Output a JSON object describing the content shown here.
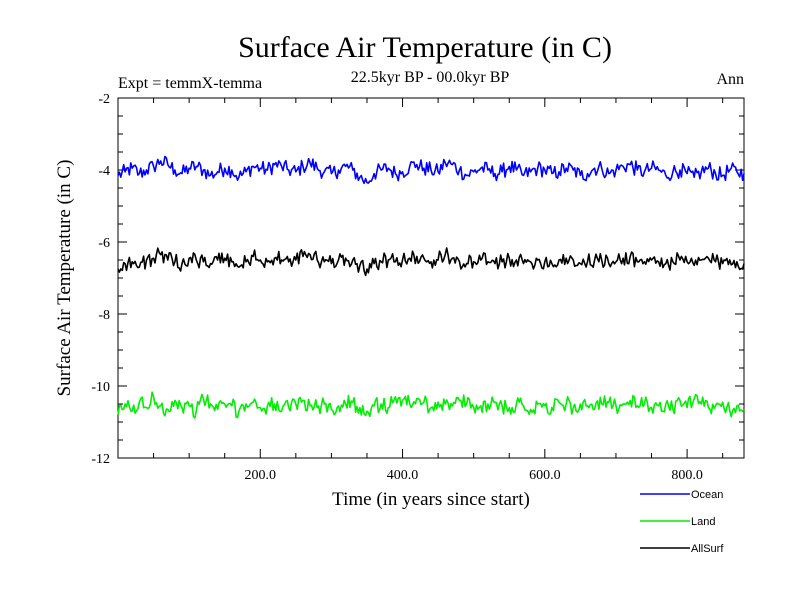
{
  "chart_data": {
    "type": "line",
    "title": "Surface Air Temperature (in C)",
    "subtitle": "22.5kyr BP - 00.0kyr BP",
    "annotation_left": "Expt = temmX-temma",
    "annotation_right": "Ann",
    "xlabel": "Time (in years since start)",
    "ylabel": "Surface Air Temperature (in C)",
    "xlim": [
      0,
      880
    ],
    "ylim": [
      -12,
      -2
    ],
    "x_tick_values": [
      200,
      400,
      600,
      800
    ],
    "x_tick_labels": [
      "200.0",
      "400.0",
      "600.0",
      "800.0"
    ],
    "y_tick_values": [
      -2,
      -4,
      -6,
      -8,
      -10,
      -12
    ],
    "y_tick_labels": [
      "-2",
      "-4",
      "-6",
      "-8",
      "-10",
      "-12"
    ],
    "grid": false,
    "legend_placement": "bottom-right",
    "series": [
      {
        "name": "Ocean",
        "color": "#0000ff",
        "x_start": 0,
        "x_end": 880,
        "x_step": 10,
        "values": [
          -4.15,
          -4.05,
          -3.95,
          -4.1,
          -4.0,
          -3.9,
          -3.75,
          -3.85,
          -4.0,
          -4.1,
          -3.95,
          -3.9,
          -4.0,
          -4.15,
          -4.05,
          -3.95,
          -4.0,
          -4.2,
          -4.05,
          -3.9,
          -3.95,
          -4.0,
          -3.85,
          -3.9,
          -4.0,
          -4.05,
          -3.9,
          -3.8,
          -3.95,
          -4.05,
          -4.1,
          -4.0,
          -3.9,
          -4.0,
          -4.2,
          -4.35,
          -4.1,
          -4.0,
          -3.95,
          -4.1,
          -4.05,
          -3.9,
          -3.85,
          -3.95,
          -4.0,
          -4.05,
          -3.8,
          -3.85,
          -4.0,
          -4.15,
          -4.05,
          -3.95,
          -4.0,
          -4.1,
          -4.05,
          -3.9,
          -4.0,
          -4.15,
          -4.05,
          -3.95,
          -4.0,
          -4.1,
          -4.05,
          -3.95,
          -4.0,
          -4.15,
          -4.1,
          -3.95,
          -3.95,
          -4.1,
          -4.0,
          -3.9,
          -3.85,
          -4.0,
          -4.05,
          -3.95,
          -4.0,
          -4.15,
          -4.05,
          -4.0,
          -4.1,
          -4.2,
          -4.05,
          -3.95,
          -4.1,
          -4.15,
          -4.0,
          -4.05,
          -4.1
        ]
      },
      {
        "name": "Land",
        "color": "#00ee00",
        "x_start": 0,
        "x_end": 880,
        "x_step": 10,
        "values": [
          -10.8,
          -10.5,
          -10.7,
          -10.45,
          -10.6,
          -10.3,
          -10.55,
          -10.65,
          -10.4,
          -10.6,
          -10.55,
          -10.7,
          -10.35,
          -10.5,
          -10.65,
          -10.5,
          -10.55,
          -10.7,
          -10.5,
          -10.45,
          -10.6,
          -10.55,
          -10.5,
          -10.7,
          -10.6,
          -10.5,
          -10.4,
          -10.55,
          -10.6,
          -10.5,
          -10.65,
          -10.55,
          -10.5,
          -10.45,
          -10.6,
          -10.7,
          -10.55,
          -10.5,
          -10.6,
          -10.3,
          -10.4,
          -10.5,
          -10.35,
          -10.45,
          -10.6,
          -10.45,
          -10.5,
          -10.55,
          -10.4,
          -10.5,
          -10.6,
          -10.55,
          -10.5,
          -10.45,
          -10.55,
          -10.6,
          -10.5,
          -10.55,
          -10.65,
          -10.5,
          -10.55,
          -10.6,
          -10.45,
          -10.5,
          -10.6,
          -10.5,
          -10.55,
          -10.65,
          -10.5,
          -10.45,
          -10.55,
          -10.5,
          -10.4,
          -10.55,
          -10.5,
          -10.6,
          -10.55,
          -10.5,
          -10.65,
          -10.4,
          -10.6,
          -10.35,
          -10.5,
          -10.6,
          -10.55,
          -10.45,
          -10.7,
          -10.55,
          -10.65
        ]
      },
      {
        "name": "AllSurf",
        "color": "#000000",
        "x_start": 0,
        "x_end": 880,
        "x_step": 10,
        "values": [
          -6.75,
          -6.6,
          -6.55,
          -6.7,
          -6.5,
          -6.45,
          -6.35,
          -6.5,
          -6.55,
          -6.6,
          -6.45,
          -6.5,
          -6.55,
          -6.6,
          -6.5,
          -6.45,
          -6.55,
          -6.7,
          -6.55,
          -6.4,
          -6.5,
          -6.55,
          -6.45,
          -6.5,
          -6.55,
          -6.5,
          -6.4,
          -6.35,
          -6.5,
          -6.55,
          -6.6,
          -6.5,
          -6.45,
          -6.5,
          -6.65,
          -6.75,
          -6.6,
          -6.55,
          -6.5,
          -6.55,
          -6.5,
          -6.45,
          -6.4,
          -6.45,
          -6.55,
          -6.5,
          -6.35,
          -6.45,
          -6.55,
          -6.6,
          -6.55,
          -6.5,
          -6.55,
          -6.6,
          -6.55,
          -6.45,
          -6.5,
          -6.6,
          -6.55,
          -6.5,
          -6.55,
          -6.6,
          -6.5,
          -6.45,
          -6.5,
          -6.6,
          -6.55,
          -6.5,
          -6.5,
          -6.6,
          -6.55,
          -6.45,
          -6.4,
          -6.55,
          -6.55,
          -6.5,
          -6.55,
          -6.6,
          -6.55,
          -6.5,
          -6.55,
          -6.65,
          -6.5,
          -6.45,
          -6.55,
          -6.6,
          -6.5,
          -6.55,
          -6.6
        ]
      }
    ]
  }
}
